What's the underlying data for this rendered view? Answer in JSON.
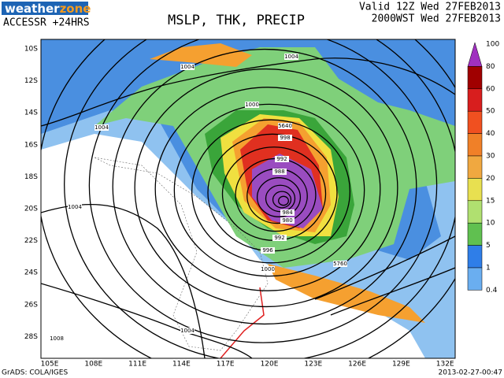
{
  "header": {
    "logo": [
      "weather",
      "zone"
    ],
    "model": "ACCESSR +24HRS",
    "title": "MSLP, THK, PRECIP",
    "valid": "Valid 12Z Wed 27FEB2013",
    "local": "2000WST Wed 27FEB2013"
  },
  "map": {
    "lat_labels": [
      "10S",
      "12S",
      "14S",
      "16S",
      "18S",
      "20S",
      "22S",
      "24S",
      "26S",
      "28S"
    ],
    "lon_labels": [
      "105E",
      "108E",
      "111E",
      "114E",
      "117E",
      "120E",
      "123E",
      "126E",
      "129E",
      "132E"
    ],
    "isobar_labels": [
      "1004",
      "1004",
      "1004",
      "1004",
      "1000",
      "998",
      "992",
      "988",
      "984",
      "980",
      "992",
      "996",
      "1000",
      "1004",
      "1008",
      "5640",
      "5760"
    ]
  },
  "colorbar": {
    "labels": [
      "100",
      "80",
      "60",
      "50",
      "40",
      "30",
      "20",
      "15",
      "10",
      "5",
      "1",
      "0.4"
    ]
  },
  "footer": {
    "left": "GrADS: COLA/IGES",
    "right": "2013-02-27-00:47"
  }
}
